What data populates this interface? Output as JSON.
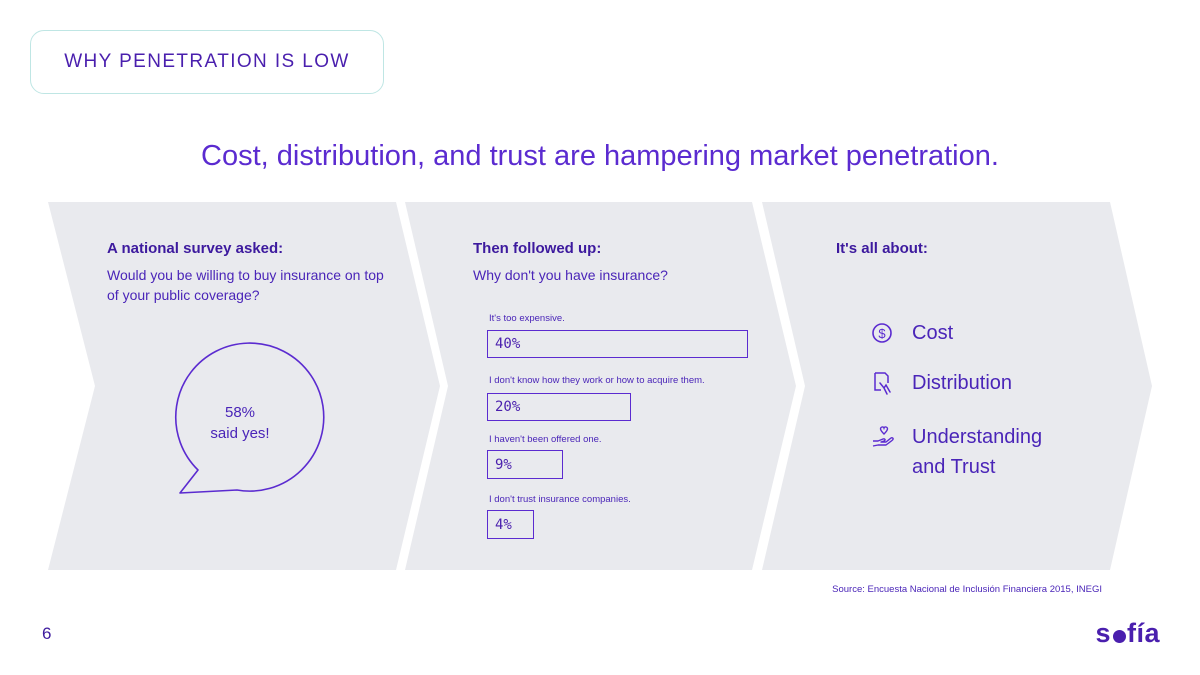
{
  "tag": "WHY PENETRATION IS LOW",
  "headline": "Cost, distribution, and trust are hampering market penetration.",
  "column1": {
    "heading": "A national survey asked:",
    "question": "Would you be willing to buy insurance on top of your public coverage?",
    "bubble_value": "58%",
    "bubble_label": "said yes!"
  },
  "column2": {
    "heading": "Then followed up:",
    "question": "Why don't you have insurance?",
    "answers": [
      {
        "label": "It's too expensive.",
        "value": "40%",
        "percent": 40
      },
      {
        "label": "I don't know how they work or how to acquire them.",
        "value": "20%",
        "percent": 20
      },
      {
        "label": "I haven't been offered one.",
        "value": "9%",
        "percent": 9
      },
      {
        "label": "I don't trust insurance companies.",
        "value": "4%",
        "percent": 4
      }
    ]
  },
  "column3": {
    "heading": "It's all about:",
    "factors": [
      {
        "label": "Cost",
        "icon": "dollar-coin-icon"
      },
      {
        "label": "Distribution",
        "icon": "document-hand-icon"
      },
      {
        "label": "Understanding",
        "label2": "and Trust",
        "icon": "heart-hand-icon"
      }
    ]
  },
  "source": "Source: Encuesta Nacional de Inclusión Financiera 2015, INEGI",
  "page_number": "6",
  "logo": {
    "text_start": "s",
    "text_end": "fía"
  },
  "colors": {
    "accent": "#5b2bd0",
    "panel": "#e9eaee",
    "tag_border": "#bfe6e4"
  }
}
